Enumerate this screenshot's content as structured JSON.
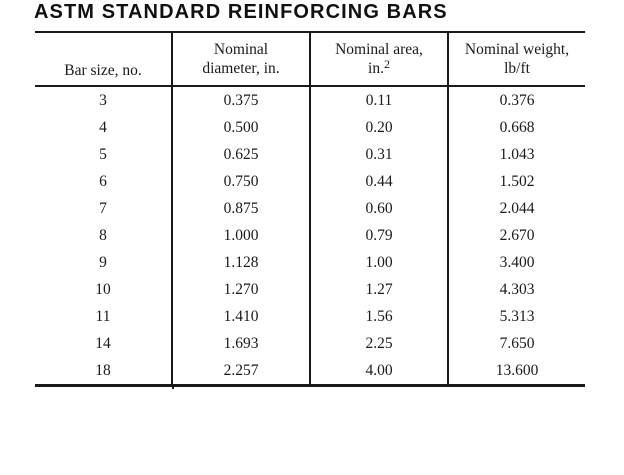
{
  "title": "ASTM STANDARD REINFORCING BARS",
  "colors": {
    "background": "#ffffff",
    "text": "#1a1a1a",
    "line": "#1a1a1a",
    "title": "#111111"
  },
  "table": {
    "headers": [
      {
        "line1": "Bar size, no.",
        "line2": ""
      },
      {
        "line1": "Nominal",
        "line2": "diameter, in."
      },
      {
        "line1": "Nominal area,",
        "line2_prefix": "in.",
        "line2_sup": "2"
      },
      {
        "line1": "Nominal weight,",
        "line2": "lb/ft"
      }
    ],
    "rows": [
      [
        "3",
        "0.375",
        "0.11",
        "0.376"
      ],
      [
        "4",
        "0.500",
        "0.20",
        "0.668"
      ],
      [
        "5",
        "0.625",
        "0.31",
        "1.043"
      ],
      [
        "6",
        "0.750",
        "0.44",
        "1.502"
      ],
      [
        "7",
        "0.875",
        "0.60",
        "2.044"
      ],
      [
        "8",
        "1.000",
        "0.79",
        "2.670"
      ],
      [
        "9",
        "1.128",
        "1.00",
        "3.400"
      ],
      [
        "10",
        "1.270",
        "1.27",
        "4.303"
      ],
      [
        "11",
        "1.410",
        "1.56",
        "5.313"
      ],
      [
        "14",
        "1.693",
        "2.25",
        "7.650"
      ],
      [
        "18",
        "2.257",
        "4.00",
        "13.600"
      ]
    ]
  }
}
